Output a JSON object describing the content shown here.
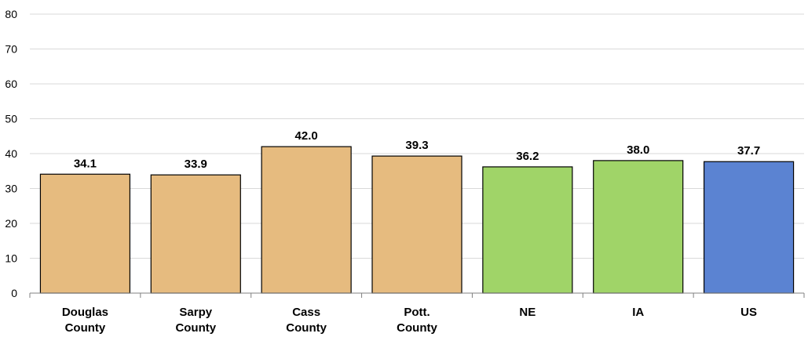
{
  "chart_data": {
    "type": "bar",
    "categories": [
      [
        "Douglas",
        "County"
      ],
      [
        "Sarpy",
        "County"
      ],
      [
        "Cass",
        "County"
      ],
      [
        "Pott.",
        "County"
      ],
      [
        "NE"
      ],
      [
        "IA"
      ],
      [
        "US"
      ]
    ],
    "values": [
      34.1,
      33.9,
      42.0,
      39.3,
      36.2,
      38.0,
      37.7
    ],
    "value_labels": [
      "34.1",
      "33.9",
      "42.0",
      "39.3",
      "36.2",
      "38.0",
      "37.7"
    ],
    "bar_colors": [
      "#e6bb7f",
      "#e6bb7f",
      "#e6bb7f",
      "#e6bb7f",
      "#a0d468",
      "#a0d468",
      "#5b83d2"
    ],
    "title": "",
    "xlabel": "",
    "ylabel": "",
    "ylim": [
      0,
      80
    ],
    "yticks": [
      0,
      10,
      20,
      30,
      40,
      50,
      60,
      70,
      80
    ],
    "grid": true,
    "legend": "none"
  }
}
